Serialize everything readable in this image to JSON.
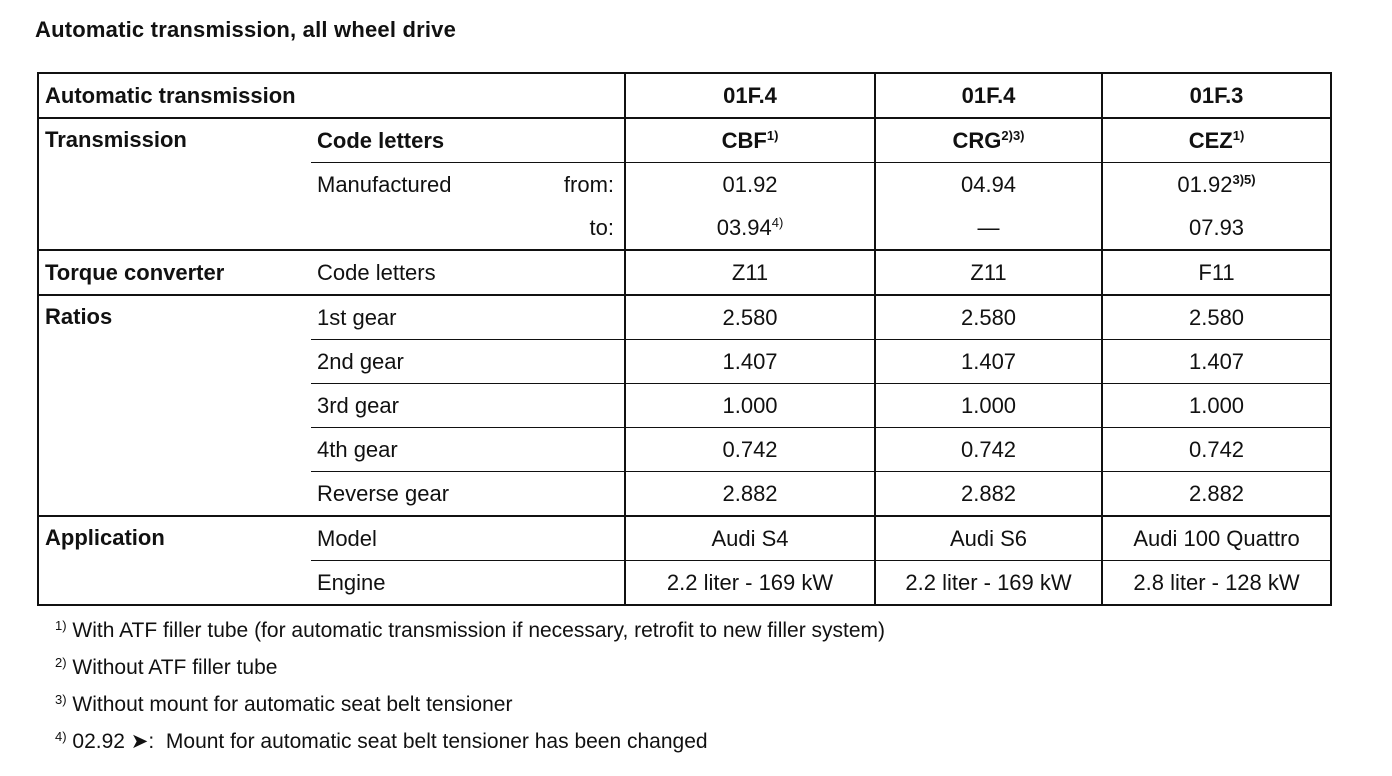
{
  "title": "Automatic transmission, all wheel drive",
  "header": {
    "label": "Automatic transmission",
    "col1": "01F.4",
    "col2": "01F.4",
    "col3": "01F.3"
  },
  "transmission": {
    "group_label": "Transmission",
    "code_label": "Code letters",
    "codes": [
      {
        "code": "CBF",
        "sup": "1)"
      },
      {
        "code": "CRG",
        "sup": "2)3)"
      },
      {
        "code": "CEZ",
        "sup": "1)"
      }
    ],
    "manufactured_label": "Manufactured",
    "from_label": "from:",
    "to_label": "to:",
    "from": [
      {
        "value": "01.92",
        "sup": ""
      },
      {
        "value": "04.94",
        "sup": ""
      },
      {
        "value": "01.92",
        "sup": "3)5)"
      }
    ],
    "to": [
      {
        "value": "03.94",
        "sup": "4)"
      },
      {
        "value": "—",
        "sup": ""
      },
      {
        "value": "07.93",
        "sup": ""
      }
    ]
  },
  "torque_converter": {
    "group_label": "Torque converter",
    "code_label": "Code letters",
    "values": [
      "Z11",
      "Z11",
      "F11"
    ]
  },
  "ratios": {
    "group_label": "Ratios",
    "rows": [
      {
        "label": "1st gear",
        "values": [
          "2.580",
          "2.580",
          "2.580"
        ]
      },
      {
        "label": "2nd gear",
        "values": [
          "1.407",
          "1.407",
          "1.407"
        ]
      },
      {
        "label": "3rd gear",
        "values": [
          "1.000",
          "1.000",
          "1.000"
        ]
      },
      {
        "label": "4th gear",
        "values": [
          "0.742",
          "0.742",
          "0.742"
        ]
      },
      {
        "label": "Reverse gear",
        "values": [
          "2.882",
          "2.882",
          "2.882"
        ]
      }
    ]
  },
  "application": {
    "group_label": "Application",
    "model_label": "Model",
    "models": [
      "Audi S4",
      "Audi S6",
      "Audi 100 Quattro"
    ],
    "engine_label": "Engine",
    "engines": [
      "2.2 liter - 169 kW",
      "2.2 liter - 169 kW",
      "2.8 liter - 128 kW"
    ]
  },
  "footnotes": [
    {
      "mark": "1)",
      "text": "With ATF filler tube (for automatic transmission if necessary, retrofit to new filler system)"
    },
    {
      "mark": "2)",
      "text": "Without ATF filler tube"
    },
    {
      "mark": "3)",
      "text": "Without mount for automatic seat belt tensioner"
    },
    {
      "mark": "4)",
      "text": "02.92 ➤:  Mount for automatic seat belt tensioner has been changed"
    }
  ]
}
